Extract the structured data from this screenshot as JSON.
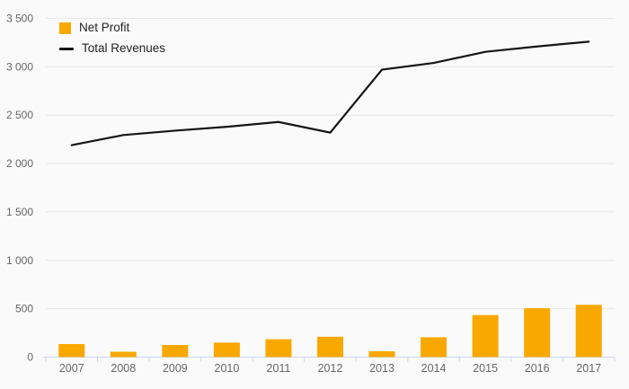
{
  "chart_data": {
    "type": "combo",
    "title": "",
    "xlabel": "",
    "ylabel": "",
    "categories": [
      "2007",
      "2008",
      "2009",
      "2010",
      "2011",
      "2012",
      "2013",
      "2014",
      "2015",
      "2016",
      "2017"
    ],
    "series": [
      {
        "name": "Net Profit",
        "type": "bar",
        "color": "#f9a800",
        "values": [
          135,
          55,
          125,
          150,
          185,
          210,
          60,
          205,
          435,
          505,
          540
        ]
      },
      {
        "name": "Total Revenues",
        "type": "line",
        "color": "#151515",
        "values": [
          2190,
          2295,
          2340,
          2380,
          2430,
          2320,
          2970,
          3040,
          3155,
          3210,
          3260
        ]
      }
    ],
    "ylim": [
      0,
      3500
    ],
    "ytick_step": 500,
    "ytick_labels": [
      "0",
      "500",
      "1 000",
      "1 500",
      "2 000",
      "2 500",
      "3 000",
      "3 500"
    ],
    "grid": true,
    "legend_position": "top-left"
  },
  "legend": {
    "items": [
      {
        "label": "Net Profit",
        "marker": "square",
        "color": "#f9a800"
      },
      {
        "label": "Total Revenues",
        "marker": "line",
        "color": "#151515"
      }
    ]
  },
  "colors": {
    "background": "#fafafa",
    "gridline": "#e8e8e8",
    "axis": "#ccd6eb",
    "tick_label": "#666666",
    "legend_text": "#222222"
  }
}
